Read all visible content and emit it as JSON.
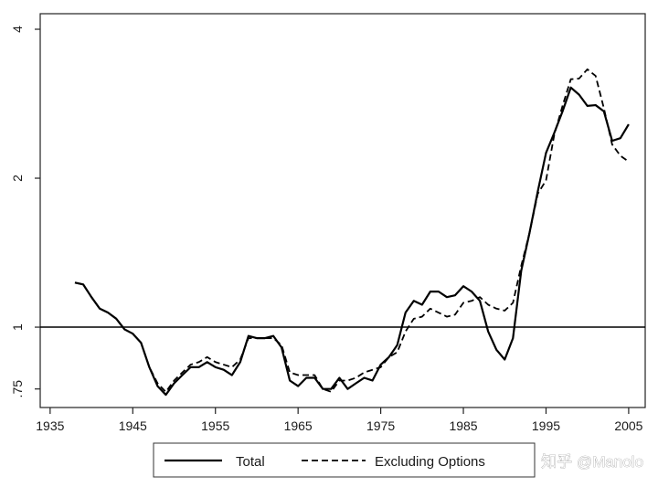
{
  "chart_data": {
    "type": "line",
    "y_scale": "log",
    "x": [
      1938,
      1939,
      1940,
      1941,
      1942,
      1943,
      1944,
      1945,
      1946,
      1947,
      1948,
      1949,
      1950,
      1951,
      1952,
      1953,
      1954,
      1955,
      1956,
      1957,
      1958,
      1959,
      1960,
      1961,
      1962,
      1963,
      1964,
      1965,
      1966,
      1967,
      1968,
      1969,
      1970,
      1971,
      1972,
      1973,
      1974,
      1975,
      1976,
      1977,
      1978,
      1979,
      1980,
      1981,
      1982,
      1983,
      1984,
      1985,
      1986,
      1987,
      1988,
      1989,
      1990,
      1991,
      1992,
      1993,
      1994,
      1995,
      1996,
      1997,
      1998,
      1999,
      2000,
      2001,
      2002,
      2003,
      2004,
      2005
    ],
    "series": [
      {
        "name": "Total",
        "line_style": "solid",
        "color": "#000000",
        "values": [
          1.23,
          1.22,
          1.15,
          1.09,
          1.07,
          1.04,
          0.99,
          0.97,
          0.93,
          0.83,
          0.76,
          0.73,
          0.77,
          0.8,
          0.83,
          0.83,
          0.85,
          0.83,
          0.82,
          0.8,
          0.85,
          0.96,
          0.95,
          0.95,
          0.96,
          0.91,
          0.78,
          0.76,
          0.79,
          0.79,
          0.75,
          0.75,
          0.79,
          0.75,
          0.77,
          0.79,
          0.78,
          0.84,
          0.87,
          0.92,
          1.07,
          1.13,
          1.11,
          1.18,
          1.18,
          1.15,
          1.16,
          1.21,
          1.18,
          1.13,
          0.98,
          0.9,
          0.86,
          0.95,
          1.3,
          1.55,
          1.88,
          2.25,
          2.47,
          2.73,
          3.05,
          2.95,
          2.8,
          2.81,
          2.73,
          2.38,
          2.41,
          2.57
        ]
      },
      {
        "name": "Excluding Options",
        "line_style": "dashed",
        "color": "#000000",
        "values": [
          1.23,
          1.22,
          1.15,
          1.09,
          1.07,
          1.04,
          0.99,
          0.97,
          0.93,
          0.83,
          0.77,
          0.74,
          0.78,
          0.81,
          0.84,
          0.85,
          0.87,
          0.85,
          0.84,
          0.83,
          0.86,
          0.95,
          0.95,
          0.95,
          0.95,
          0.92,
          0.81,
          0.8,
          0.8,
          0.8,
          0.75,
          0.74,
          0.78,
          0.78,
          0.79,
          0.81,
          0.82,
          0.83,
          0.87,
          0.89,
          0.98,
          1.04,
          1.05,
          1.09,
          1.07,
          1.05,
          1.06,
          1.12,
          1.13,
          1.15,
          1.11,
          1.09,
          1.08,
          1.12,
          1.33,
          1.55,
          1.86,
          1.98,
          2.45,
          2.8,
          3.17,
          3.18,
          3.32,
          3.22,
          2.77,
          2.34,
          2.22,
          2.16
        ]
      }
    ],
    "xlim": [
      1933.8,
      2007.0
    ],
    "ylim": [
      0.688,
      4.3
    ],
    "x_ticks": [
      1935,
      1945,
      1955,
      1965,
      1975,
      1985,
      1995,
      2005
    ],
    "x_tick_labels": [
      "1935",
      "1945",
      "1955",
      "1965",
      "1975",
      "1985",
      "1995",
      "2005"
    ],
    "y_ticks": [
      4,
      2,
      1,
      0.75
    ],
    "y_tick_labels": [
      "4",
      "2",
      "1",
      ".75"
    ],
    "reference_lines": [
      {
        "axis": "y",
        "value": 1
      }
    ],
    "grid": false,
    "legend": {
      "position": "bottom"
    }
  },
  "watermark": "知乎 @Manolo"
}
